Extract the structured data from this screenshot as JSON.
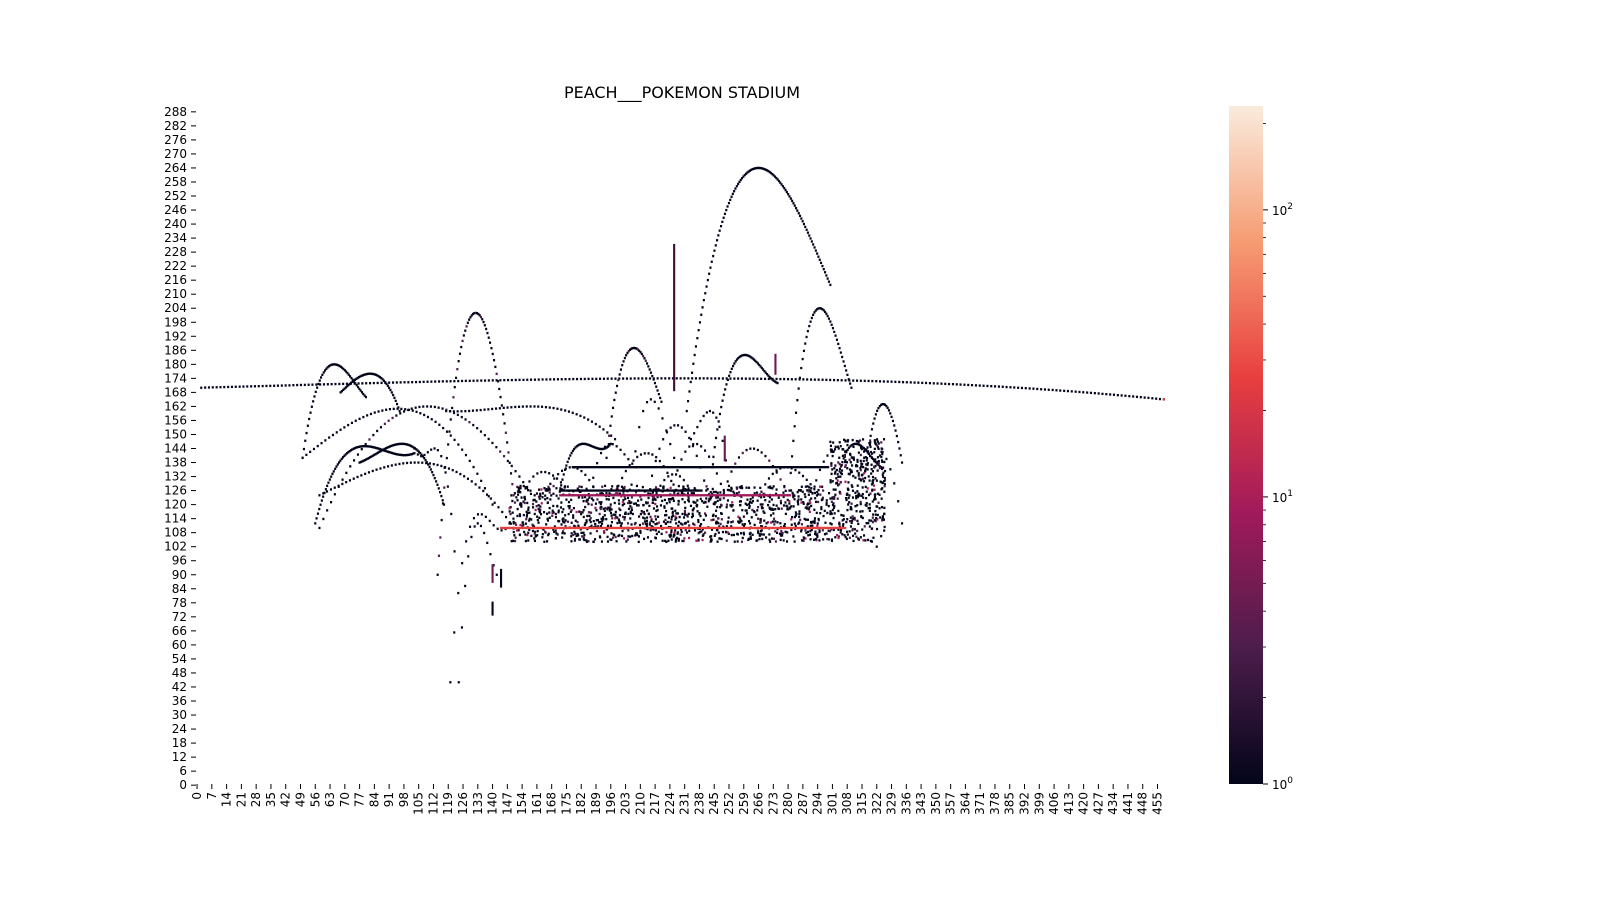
{
  "chart_data": {
    "type": "heatmap",
    "title": "PEACH___POKEMON STADIUM",
    "xlabel": "",
    "ylabel": "",
    "x_ticks": [
      0,
      7,
      14,
      21,
      28,
      35,
      42,
      49,
      56,
      63,
      70,
      77,
      84,
      91,
      98,
      105,
      112,
      119,
      126,
      133,
      140,
      147,
      154,
      161,
      168,
      175,
      182,
      189,
      196,
      203,
      210,
      217,
      224,
      231,
      238,
      245,
      252,
      259,
      266,
      273,
      280,
      287,
      294,
      301,
      308,
      315,
      322,
      329,
      336,
      343,
      350,
      357,
      364,
      371,
      378,
      385,
      392,
      399,
      406,
      413,
      420,
      427,
      434,
      441,
      448,
      455
    ],
    "y_ticks": [
      0,
      6,
      12,
      18,
      24,
      30,
      36,
      42,
      48,
      54,
      60,
      66,
      72,
      78,
      84,
      90,
      96,
      102,
      108,
      114,
      120,
      126,
      132,
      138,
      144,
      150,
      156,
      162,
      168,
      174,
      180,
      186,
      192,
      198,
      204,
      210,
      216,
      222,
      228,
      234,
      240,
      246,
      252,
      258,
      264,
      270,
      276,
      282,
      288
    ],
    "xlim": [
      0,
      460
    ],
    "ylim": [
      0,
      290
    ],
    "colorbar": {
      "scale": "log",
      "vmin": 1,
      "vmax": 230,
      "tick_values": [
        1,
        10,
        100
      ],
      "tick_labels": [
        {
          "base": "10",
          "exp": "0"
        },
        {
          "base": "10",
          "exp": "1"
        },
        {
          "base": "10",
          "exp": "2"
        }
      ],
      "colors": [
        "#03051a",
        "#4c1d4b",
        "#a11a5b",
        "#e83f3f",
        "#f69c73",
        "#faebdd"
      ]
    },
    "arcs": [
      {
        "x0": 2,
        "y0": 170,
        "x1": 458,
        "y1": 165,
        "peak": 174,
        "dense": false
      },
      {
        "x0": 50,
        "y0": 140,
        "x1": 80,
        "y1": 166,
        "peak": 180,
        "dense": true
      },
      {
        "x0": 68,
        "y0": 168,
        "x1": 96,
        "y1": 160,
        "peak": 176,
        "dense": true
      },
      {
        "x0": 58,
        "y0": 110,
        "x1": 160,
        "y1": 122,
        "peak": 162,
        "dense": false
      },
      {
        "x0": 50,
        "y0": 140,
        "x1": 140,
        "y1": 120,
        "peak": 161,
        "dense": false
      },
      {
        "x0": 118,
        "y0": 160,
        "x1": 198,
        "y1": 148,
        "peak": 162,
        "dense": false
      },
      {
        "x0": 58,
        "y0": 124,
        "x1": 150,
        "y1": 110,
        "peak": 138,
        "dense": false
      },
      {
        "x0": 56,
        "y0": 112,
        "x1": 103,
        "y1": 142,
        "peak": 145,
        "dense": true
      },
      {
        "x0": 77,
        "y0": 138,
        "x1": 117,
        "y1": 120,
        "peak": 146,
        "dense": true
      },
      {
        "x0": 103,
        "y0": 144,
        "x1": 122,
        "y1": 100,
        "peak": 144,
        "dense": false
      },
      {
        "x0": 114,
        "y0": 90,
        "x1": 150,
        "y1": 124,
        "peak": 202,
        "dense": true
      },
      {
        "x0": 120,
        "y0": 44,
        "x1": 148,
        "y1": 112,
        "peak": 116,
        "dense": false
      },
      {
        "x0": 124,
        "y0": 44,
        "x1": 142,
        "y1": 90,
        "peak": 112,
        "dense": false
      },
      {
        "x0": 150,
        "y0": 112,
        "x1": 178,
        "y1": 124,
        "peak": 134,
        "dense": false
      },
      {
        "x0": 160,
        "y0": 116,
        "x1": 195,
        "y1": 110,
        "peak": 136,
        "dense": false
      },
      {
        "x0": 170,
        "y0": 116,
        "x1": 196,
        "y1": 146,
        "peak": 146,
        "dense": true
      },
      {
        "x0": 184,
        "y0": 112,
        "x1": 208,
        "y1": 136,
        "peak": 146,
        "dense": false
      },
      {
        "x0": 194,
        "y0": 140,
        "x1": 220,
        "y1": 164,
        "peak": 187,
        "dense": true
      },
      {
        "x0": 204,
        "y0": 110,
        "x1": 226,
        "y1": 140,
        "peak": 165,
        "dense": false
      },
      {
        "x0": 196,
        "y0": 120,
        "x1": 230,
        "y1": 116,
        "peak": 142,
        "dense": false
      },
      {
        "x0": 212,
        "y0": 116,
        "x1": 242,
        "y1": 124,
        "peak": 154,
        "dense": false
      },
      {
        "x0": 232,
        "y0": 160,
        "x1": 300,
        "y1": 214,
        "peak": 264,
        "dense": true
      },
      {
        "x0": 222,
        "y0": 112,
        "x1": 250,
        "y1": 124,
        "peak": 146,
        "dense": false
      },
      {
        "x0": 244,
        "y0": 136,
        "x1": 275,
        "y1": 172,
        "peak": 184,
        "dense": true
      },
      {
        "x0": 246,
        "y0": 112,
        "x1": 280,
        "y1": 124,
        "peak": 144,
        "dense": false
      },
      {
        "x0": 262,
        "y0": 112,
        "x1": 296,
        "y1": 122,
        "peak": 136,
        "dense": false
      },
      {
        "x0": 280,
        "y0": 118,
        "x1": 310,
        "y1": 170,
        "peak": 204,
        "dense": true
      },
      {
        "x0": 288,
        "y0": 110,
        "x1": 320,
        "y1": 130,
        "peak": 144,
        "dense": false
      },
      {
        "x0": 300,
        "y0": 112,
        "x1": 324,
        "y1": 136,
        "peak": 146,
        "dense": true
      },
      {
        "x0": 316,
        "y0": 130,
        "x1": 334,
        "y1": 138,
        "peak": 163,
        "dense": true
      },
      {
        "x0": 310,
        "y0": 118,
        "x1": 334,
        "y1": 112,
        "peak": 144,
        "dense": false
      },
      {
        "x0": 300,
        "y0": 116,
        "x1": 322,
        "y1": 102,
        "peak": 140,
        "dense": false
      },
      {
        "x0": 214,
        "y0": 116,
        "x1": 238,
        "y1": 116,
        "peak": 133,
        "dense": false
      },
      {
        "x0": 234,
        "y0": 148,
        "x1": 252,
        "y1": 128,
        "peak": 160,
        "dense": false
      }
    ],
    "verticals": [
      {
        "x": 226,
        "y0": 168,
        "y1": 231,
        "color": "#3a0f3e"
      },
      {
        "x": 250,
        "y0": 138,
        "y1": 149,
        "color": "#6b1a55"
      },
      {
        "x": 274,
        "y0": 175,
        "y1": 184,
        "color": "#6b1a55"
      },
      {
        "x": 140,
        "y0": 86,
        "y1": 94,
        "color": "#6b1a55"
      },
      {
        "x": 140,
        "y0": 72,
        "y1": 78,
        "color": "#03051a"
      },
      {
        "x": 144,
        "y0": 84,
        "y1": 92,
        "color": "#03051a"
      }
    ],
    "platforms": [
      {
        "x0": 144,
        "y": 110,
        "x1": 308,
        "color": "#e83f3f"
      },
      {
        "x0": 172,
        "y": 124,
        "x1": 282,
        "color": "#a11a5b"
      },
      {
        "x0": 172,
        "y": 126,
        "x1": 240,
        "color": "#03051a"
      },
      {
        "x0": 178,
        "y": 136,
        "x1": 300,
        "color": "#03051a"
      }
    ],
    "dense_regions": [
      {
        "x0": 148,
        "x1": 300,
        "y0": 104,
        "y1": 128
      },
      {
        "x0": 300,
        "x1": 326,
        "y0": 104,
        "y1": 148
      }
    ],
    "highlight_cells": [
      {
        "x": 458,
        "y": 165,
        "color": "#e83f3f"
      }
    ]
  }
}
